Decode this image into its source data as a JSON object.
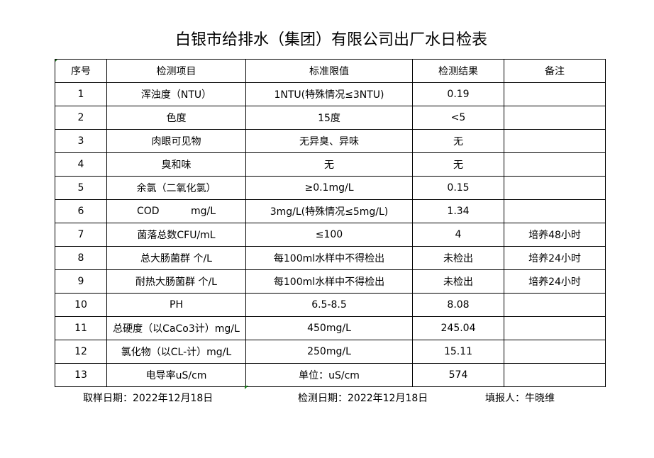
{
  "title": "白银市给排水（集团）有限公司出厂水日检表",
  "headers": [
    "序号",
    "检测项目",
    "标准限值",
    "检测结果",
    "备注"
  ],
  "rows": [
    [
      "1",
      "浑浊度（NTU）",
      "1NTU(特殊情况≤3NTU)",
      "0.19",
      ""
    ],
    [
      "2",
      "色度",
      "15度",
      "<5",
      ""
    ],
    [
      "3",
      "肉眼可见物",
      "无异臭、异味",
      "无",
      ""
    ],
    [
      "4",
      "臭和味",
      "无",
      "无",
      ""
    ],
    [
      "5",
      "余氯（二氧化氯）",
      "≥0.1mg/L",
      "0.15",
      ""
    ],
    [
      "6",
      "COD          mg/L",
      "3mg/L(特殊情况≤5mg/L)",
      "1.34",
      ""
    ],
    [
      "7",
      "菌落总数CFU/mL",
      "≤100",
      "4",
      "培养48小时"
    ],
    [
      "8",
      "总大肠菌群 个/L",
      "每100ml水样中不得检出",
      "未检出",
      "培养24小时"
    ],
    [
      "9",
      "耐热大肠菌群 个/L",
      "每100ml水样中不得检出",
      "未检出",
      "培养24小时"
    ],
    [
      "10",
      "PH",
      "6.5-8.5",
      "8.08",
      ""
    ],
    [
      "11",
      "总硬度（以CaCo3计）mg/L",
      "450mg/L",
      "245.04",
      ""
    ],
    [
      "12",
      "氯化物（以CL-计）mg/L",
      "250mg/L",
      "15.11",
      ""
    ],
    [
      "13",
      "电导率uS/cm",
      "单位：uS/cm",
      "574",
      ""
    ]
  ],
  "footer": {
    "sample_date": "取样日期：2022年12月18日",
    "test_date": "检测日期：2022年12月18日",
    "reporter": "填报人：牛晓维"
  }
}
